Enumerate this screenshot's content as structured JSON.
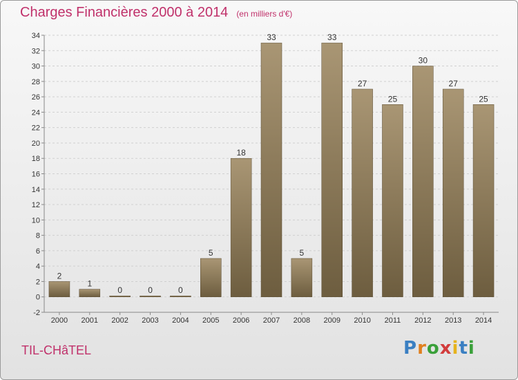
{
  "header": {
    "title": "Charges Financières 2000 à 2014",
    "unit_note": "(en milliers d'€)"
  },
  "commune": "TIL-CHâTEL",
  "logo": {
    "letters": [
      "P",
      "r",
      "o",
      "x",
      "i",
      "t",
      "i"
    ],
    "colors": [
      "#3a7fc2",
      "#e07f1e",
      "#3aa03a",
      "#d23c3c",
      "#e6b31e",
      "#3a7fc2",
      "#3aa03a"
    ]
  },
  "colors": {
    "bar_top": "#a99674",
    "bar_bottom": "#6d5d3f",
    "title": "#c0306a",
    "grid": "#d0d0d0",
    "axis": "#888888"
  },
  "chart_data": {
    "type": "bar",
    "title": "Charges Financières 2000 à 2014",
    "subtitle": "(en milliers d'€)",
    "categories": [
      "2000",
      "2001",
      "2002",
      "2003",
      "2004",
      "2005",
      "2006",
      "2007",
      "2008",
      "2009",
      "2010",
      "2011",
      "2012",
      "2013",
      "2014"
    ],
    "values": [
      2,
      1,
      0,
      0,
      0,
      5,
      18,
      33,
      5,
      33,
      27,
      25,
      30,
      27,
      25
    ],
    "yticks": [
      -2,
      0,
      2,
      4,
      6,
      8,
      10,
      12,
      14,
      16,
      18,
      20,
      22,
      24,
      26,
      28,
      30,
      32,
      34
    ],
    "ylim": [
      -2,
      34
    ],
    "grid": true,
    "legend": "none"
  }
}
